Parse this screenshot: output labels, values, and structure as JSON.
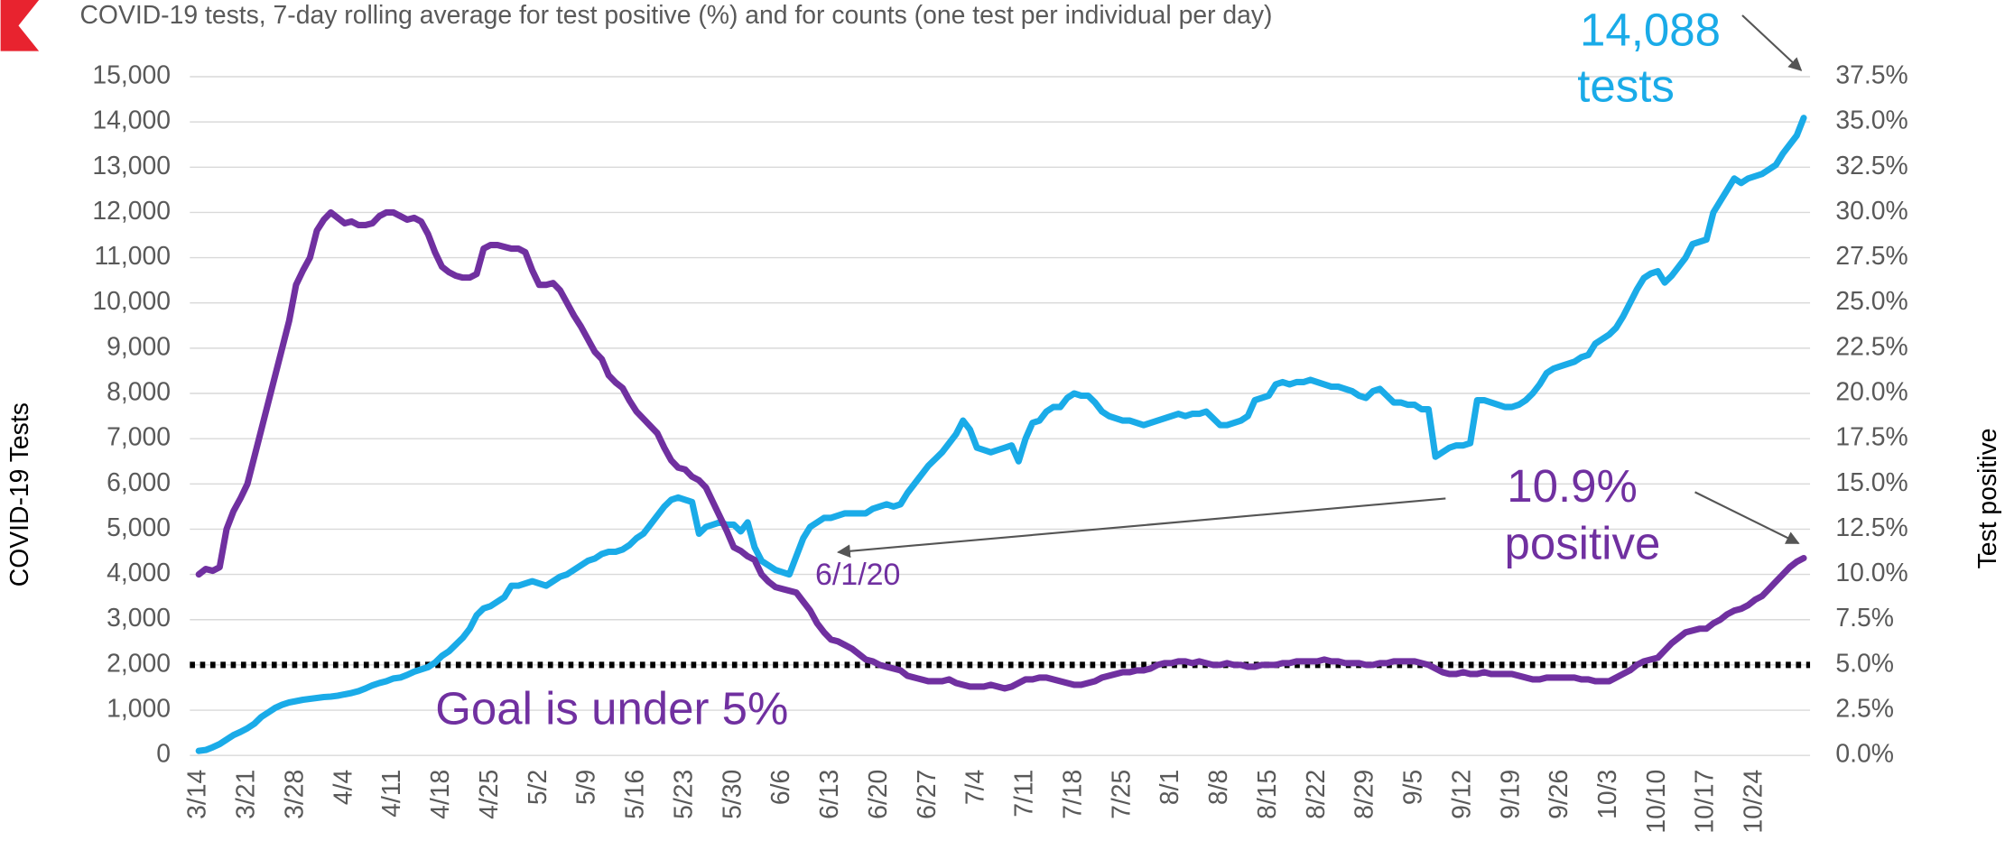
{
  "chart_data": {
    "type": "line",
    "title": "COVID-19 tests, 7-day rolling average for test positive (%) and for counts (one test per individual per day)",
    "y_label": "COVID-19 Tests",
    "y2_label": "Test positive",
    "categories": [
      "3/14",
      null,
      null,
      null,
      null,
      null,
      null,
      "3/21",
      null,
      null,
      null,
      null,
      null,
      null,
      "3/28",
      null,
      null,
      null,
      null,
      null,
      null,
      "4/4",
      null,
      null,
      null,
      null,
      null,
      null,
      "4/11",
      null,
      null,
      null,
      null,
      null,
      null,
      "4/18",
      null,
      null,
      null,
      null,
      null,
      null,
      "4/25",
      null,
      null,
      null,
      null,
      null,
      null,
      "5/2",
      null,
      null,
      null,
      null,
      null,
      null,
      "5/9",
      null,
      null,
      null,
      null,
      null,
      null,
      "5/16",
      null,
      null,
      null,
      null,
      null,
      null,
      "5/23",
      null,
      null,
      null,
      null,
      null,
      null,
      "5/30",
      null,
      null,
      null,
      null,
      null,
      null,
      "6/6",
      null,
      null,
      null,
      null,
      null,
      null,
      "6/13",
      null,
      null,
      null,
      null,
      null,
      null,
      "6/20",
      null,
      null,
      null,
      null,
      null,
      null,
      "6/27",
      null,
      null,
      null,
      null,
      null,
      null,
      "7/4",
      null,
      null,
      null,
      null,
      null,
      null,
      "7/11",
      null,
      null,
      null,
      null,
      null,
      null,
      "7/18",
      null,
      null,
      null,
      null,
      null,
      null,
      "7/25",
      null,
      null,
      null,
      null,
      null,
      null,
      "8/1",
      null,
      null,
      null,
      null,
      null,
      null,
      "8/8",
      null,
      null,
      null,
      null,
      null,
      null,
      "8/15",
      null,
      null,
      null,
      null,
      null,
      null,
      "8/22",
      null,
      null,
      null,
      null,
      null,
      null,
      "8/29",
      null,
      null,
      null,
      null,
      null,
      null,
      "9/5",
      null,
      null,
      null,
      null,
      null,
      null,
      "9/12",
      null,
      null,
      null,
      null,
      null,
      null,
      "9/19",
      null,
      null,
      null,
      null,
      null,
      null,
      "9/26",
      null,
      null,
      null,
      null,
      null,
      null,
      "10/3",
      null,
      null,
      null,
      null,
      null,
      null,
      "10/10",
      null,
      null,
      null,
      null,
      null,
      null,
      "10/17",
      null,
      null,
      null,
      null,
      null,
      null,
      "10/24",
      null,
      null,
      null,
      null,
      null,
      null,
      null
    ],
    "series": [
      {
        "color": "#1aabe8",
        "axis": "y",
        "values": [
          100,
          120,
          180,
          250,
          350,
          450,
          520,
          600,
          700,
          850,
          950,
          1050,
          1120,
          1170,
          1200,
          1230,
          1250,
          1270,
          1290,
          1300,
          1320,
          1350,
          1380,
          1420,
          1480,
          1550,
          1600,
          1640,
          1700,
          1720,
          1780,
          1850,
          1900,
          1950,
          2050,
          2200,
          2300,
          2450,
          2600,
          2800,
          3100,
          3250,
          3300,
          3400,
          3500,
          3750,
          3750,
          3800,
          3850,
          3800,
          3750,
          3850,
          3950,
          4000,
          4100,
          4200,
          4300,
          4350,
          4450,
          4500,
          4500,
          4550,
          4650,
          4800,
          4900,
          5100,
          5300,
          5500,
          5650,
          5700,
          5650,
          5600,
          4900,
          5050,
          5100,
          5150,
          5100,
          5100,
          4950,
          5150,
          4600,
          4300,
          4200,
          4100,
          4050,
          4000,
          4400,
          4800,
          5050,
          5150,
          5250,
          5250,
          5300,
          5350,
          5350,
          5350,
          5350,
          5450,
          5500,
          5550,
          5500,
          5550,
          5800,
          6000,
          6200,
          6400,
          6550,
          6700,
          6900,
          7100,
          7400,
          7200,
          6800,
          6750,
          6700,
          6750,
          6800,
          6850,
          6500,
          7000,
          7350,
          7400,
          7600,
          7700,
          7700,
          7900,
          8000,
          7950,
          7950,
          7800,
          7600,
          7500,
          7450,
          7400,
          7400,
          7350,
          7300,
          7350,
          7400,
          7450,
          7500,
          7550,
          7500,
          7550,
          7550,
          7600,
          7450,
          7300,
          7300,
          7350,
          7400,
          7500,
          7850,
          7900,
          7950,
          8200,
          8250,
          8200,
          8250,
          8250,
          8300,
          8250,
          8200,
          8150,
          8150,
          8100,
          8050,
          7950,
          7900,
          8050,
          8100,
          7950,
          7800,
          7800,
          7750,
          7750,
          7650,
          7650,
          6600,
          6700,
          6800,
          6850,
          6850,
          6900,
          7850,
          7850,
          7800,
          7750,
          7700,
          7700,
          7750,
          7850,
          8000,
          8200,
          8450,
          8550,
          8600,
          8650,
          8700,
          8800,
          8850,
          9100,
          9200,
          9300,
          9450,
          9700,
          10000,
          10300,
          10550,
          10650,
          10700,
          10450,
          10600,
          10800,
          11000,
          11300,
          11350,
          11400,
          12000,
          12250,
          12500,
          12750,
          12650,
          12750,
          12800,
          12850,
          12950,
          13050,
          13300,
          13500,
          13700,
          14088
        ]
      },
      {
        "color": "#7030a0",
        "axis": "y2",
        "values": [
          10.0,
          10.3,
          10.2,
          10.4,
          12.5,
          13.5,
          14.2,
          15.0,
          16.5,
          18.0,
          19.5,
          21.0,
          22.5,
          24.0,
          26.0,
          26.8,
          27.5,
          29.0,
          29.6,
          30.0,
          29.7,
          29.4,
          29.5,
          29.3,
          29.3,
          29.4,
          29.8,
          30.0,
          30.0,
          29.8,
          29.6,
          29.7,
          29.5,
          28.8,
          27.8,
          27.0,
          26.7,
          26.5,
          26.4,
          26.4,
          26.6,
          28.0,
          28.2,
          28.2,
          28.1,
          28.0,
          28.0,
          27.8,
          26.8,
          26.0,
          26.0,
          26.1,
          25.7,
          25.0,
          24.3,
          23.7,
          23.0,
          22.3,
          21.9,
          21.0,
          20.6,
          20.3,
          19.6,
          19.0,
          18.6,
          18.2,
          17.8,
          17.0,
          16.3,
          15.9,
          15.8,
          15.4,
          15.2,
          14.8,
          14.0,
          13.2,
          12.4,
          11.5,
          11.3,
          11.0,
          10.8,
          10.0,
          9.6,
          9.3,
          9.2,
          9.1,
          9.0,
          8.5,
          8.0,
          7.3,
          6.8,
          6.4,
          6.3,
          6.1,
          5.9,
          5.6,
          5.3,
          5.2,
          5.0,
          4.9,
          4.8,
          4.7,
          4.4,
          4.3,
          4.2,
          4.1,
          4.1,
          4.1,
          4.2,
          4.0,
          3.9,
          3.8,
          3.8,
          3.8,
          3.9,
          3.8,
          3.7,
          3.8,
          4.0,
          4.2,
          4.2,
          4.3,
          4.3,
          4.2,
          4.1,
          4.0,
          3.9,
          3.9,
          4.0,
          4.1,
          4.3,
          4.4,
          4.5,
          4.6,
          4.6,
          4.7,
          4.7,
          4.8,
          5.0,
          5.1,
          5.1,
          5.2,
          5.2,
          5.1,
          5.2,
          5.1,
          5.0,
          5.0,
          5.1,
          5.0,
          5.0,
          4.9,
          4.9,
          5.0,
          5.0,
          5.0,
          5.1,
          5.1,
          5.2,
          5.2,
          5.2,
          5.2,
          5.3,
          5.2,
          5.2,
          5.1,
          5.1,
          5.1,
          5.0,
          5.0,
          5.1,
          5.1,
          5.2,
          5.2,
          5.2,
          5.2,
          5.1,
          5.0,
          4.8,
          4.6,
          4.5,
          4.5,
          4.6,
          4.5,
          4.5,
          4.6,
          4.5,
          4.5,
          4.5,
          4.5,
          4.4,
          4.3,
          4.2,
          4.2,
          4.3,
          4.3,
          4.3,
          4.3,
          4.3,
          4.2,
          4.2,
          4.1,
          4.1,
          4.1,
          4.3,
          4.5,
          4.7,
          5.0,
          5.2,
          5.3,
          5.4,
          5.8,
          6.2,
          6.5,
          6.8,
          6.9,
          7.0,
          7.0,
          7.3,
          7.5,
          7.8,
          8.0,
          8.1,
          8.3,
          8.6,
          8.8,
          9.2,
          9.6,
          10.0,
          10.4,
          10.7,
          10.9
        ]
      }
    ],
    "goal": {
      "value": 5,
      "axis": "y2",
      "label": "Goal is under 5%"
    },
    "annotations": [
      {
        "lines": [
          "14,088",
          "tests"
        ],
        "color": "#1aabe8"
      },
      {
        "lines": [
          "10.9%",
          "positive"
        ],
        "color": "#7030a0"
      },
      {
        "lines": [
          "6/1/20"
        ],
        "color": "#7030a0"
      }
    ],
    "ylim": [
      0,
      15000
    ],
    "yticks": [
      0,
      {
        "value": 1000,
        "label": "1,000"
      },
      {
        "value": 2000,
        "label": "2,000"
      },
      {
        "value": 3000,
        "label": "3,000"
      },
      {
        "value": 4000,
        "label": "4,000"
      },
      {
        "value": 5000,
        "label": "5,000"
      },
      {
        "value": 6000,
        "label": "6,000"
      },
      {
        "value": 7000,
        "label": "7,000"
      },
      {
        "value": 8000,
        "label": "8,000"
      },
      {
        "value": 9000,
        "label": "9,000"
      },
      {
        "value": 10000,
        "label": "10,000"
      },
      {
        "value": 11000,
        "label": "11,000"
      },
      {
        "value": 12000,
        "label": "12,000"
      },
      {
        "value": 13000,
        "label": "13,000"
      },
      {
        "value": 14000,
        "label": "14,000"
      },
      {
        "value": 15000,
        "label": "15,000"
      }
    ],
    "y2lim": [
      0,
      37.5
    ],
    "y2ticks": [
      {
        "value": 0,
        "label": "0.0%"
      },
      {
        "value": 2.5,
        "label": "2.5%"
      },
      {
        "value": 5,
        "label": "5.0%"
      },
      {
        "value": 7.5,
        "label": "7.5%"
      },
      {
        "value": 10,
        "label": "10.0%"
      },
      {
        "value": 12.5,
        "label": "12.5%"
      },
      {
        "value": 15,
        "label": "15.0%"
      },
      {
        "value": 17.5,
        "label": "17.5%"
      },
      {
        "value": 20,
        "label": "20.0%"
      },
      {
        "value": 22.5,
        "label": "22.5%"
      },
      {
        "value": 25,
        "label": "25.0%"
      },
      {
        "value": 27.5,
        "label": "27.5%"
      },
      {
        "value": 30,
        "label": "30.0%"
      },
      {
        "value": 32.5,
        "label": "32.5%"
      },
      {
        "value": 35,
        "label": "35.0%"
      },
      {
        "value": 37.5,
        "label": "37.5%"
      }
    ],
    "grid": true
  }
}
